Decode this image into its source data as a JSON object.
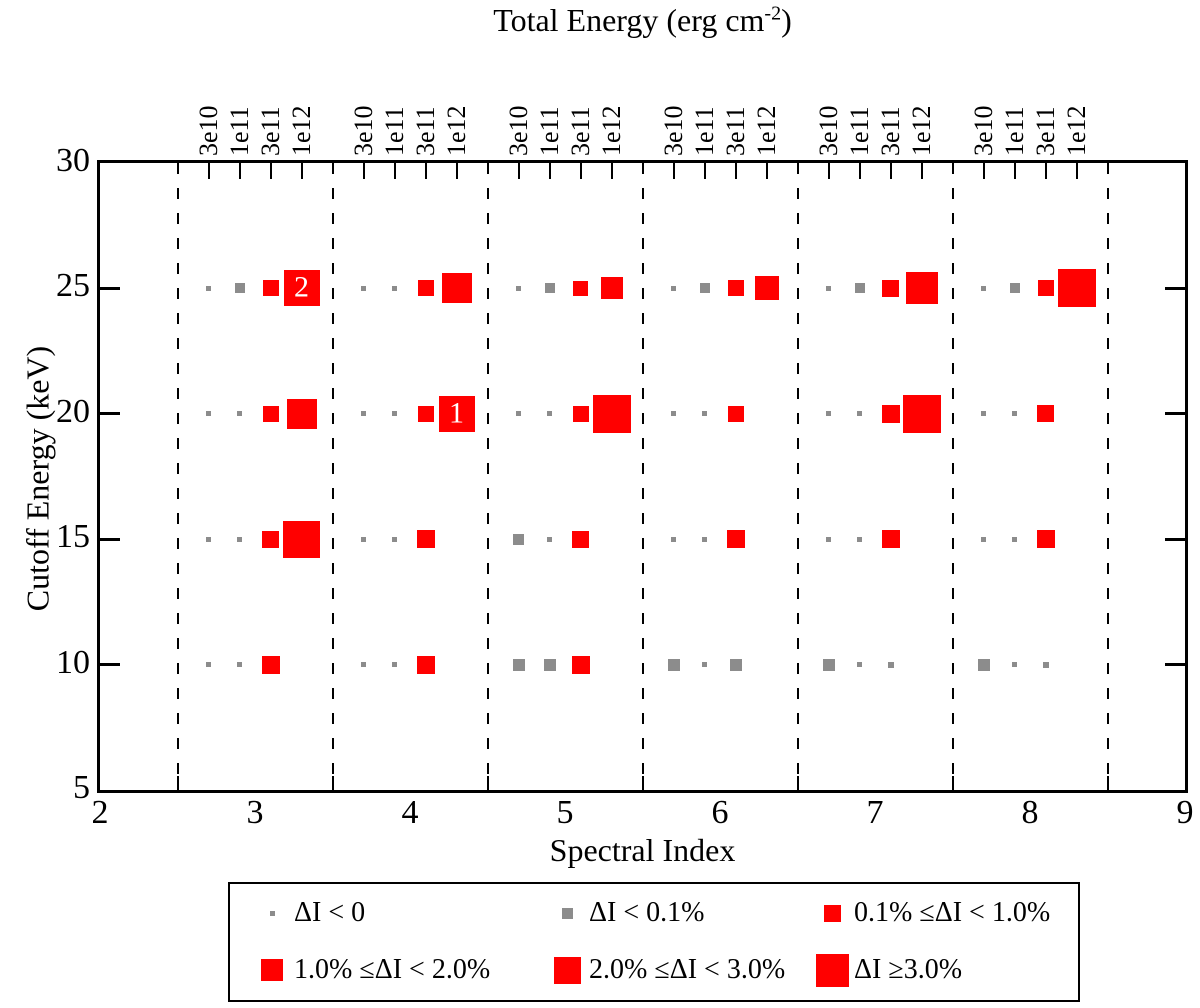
{
  "chart_data": {
    "type": "scatter",
    "title_top": {
      "prefix": "Total Energy (erg cm",
      "sup": "-2",
      "suffix": ")"
    },
    "xlabel": "Spectral Index",
    "ylabel": "Cutoff Energy (keV)",
    "xlim": [
      2,
      9
    ],
    "ylim": [
      5,
      30
    ],
    "x_ticks": [
      2,
      3,
      4,
      5,
      6,
      7,
      8,
      9
    ],
    "x_boundaries": [
      2.5,
      3.5,
      4.5,
      5.5,
      6.5,
      7.5,
      8.5
    ],
    "y_ticks": [
      5,
      10,
      15,
      20,
      25,
      30
    ],
    "y_inner_ticks": [
      10,
      15,
      20,
      25
    ],
    "energy_labels": [
      "3e10",
      "1e11",
      "3e11",
      "1e12"
    ],
    "energy_offsets": [
      -0.3,
      -0.1,
      0.1,
      0.3
    ],
    "colors": {
      "red": "#ff0000",
      "gray": "#8c8c8c"
    },
    "gray_max_size": 12,
    "points": {
      "3": {
        "25": [
          5,
          10,
          16,
          36
        ],
        "20": [
          5,
          5,
          16,
          30
        ],
        "15": [
          5,
          5,
          17,
          37
        ],
        "10": [
          5,
          5,
          18,
          null
        ]
      },
      "4": {
        "25": [
          5,
          5,
          16,
          30
        ],
        "20": [
          5,
          5,
          16,
          36
        ],
        "15": [
          5,
          5,
          18,
          null
        ],
        "10": [
          5,
          5,
          18,
          null
        ]
      },
      "5": {
        "25": [
          5,
          10,
          15,
          22
        ],
        "20": [
          5,
          5,
          16,
          38
        ],
        "15": [
          11,
          5,
          17,
          null
        ],
        "10": [
          12,
          12,
          18,
          null
        ]
      },
      "6": {
        "25": [
          5,
          10,
          16,
          24
        ],
        "20": [
          5,
          5,
          16,
          null
        ],
        "15": [
          5,
          5,
          18,
          null
        ],
        "10": [
          12,
          5,
          12,
          null
        ]
      },
      "7": {
        "25": [
          5,
          10,
          17,
          32
        ],
        "20": [
          5,
          5,
          18,
          38
        ],
        "15": [
          5,
          5,
          18,
          null
        ],
        "10": [
          12,
          5,
          6,
          null
        ]
      },
      "8": {
        "25": [
          5,
          10,
          16,
          38
        ],
        "20": [
          5,
          5,
          17,
          null
        ],
        "15": [
          5,
          5,
          18,
          null
        ],
        "10": [
          12,
          5,
          6,
          null
        ]
      }
    },
    "annotations": [
      {
        "x": 3.3,
        "y": 25,
        "text": "2"
      },
      {
        "x": 4.3,
        "y": 20,
        "text": "1"
      }
    ],
    "legend": {
      "entries": [
        {
          "row": 0,
          "col": 0,
          "label": "ΔI < 0",
          "size": 5,
          "color": "gray"
        },
        {
          "row": 0,
          "col": 1,
          "label": "ΔI < 0.1%",
          "size": 11,
          "color": "gray"
        },
        {
          "row": 0,
          "col": 2,
          "label": "0.1% ≤ΔI < 1.0%",
          "size": 17,
          "color": "red"
        },
        {
          "row": 1,
          "col": 0,
          "label": "1.0% ≤ΔI < 2.0%",
          "size": 22,
          "color": "red"
        },
        {
          "row": 1,
          "col": 1,
          "label": "2.0% ≤ΔI < 3.0%",
          "size": 27,
          "color": "red"
        },
        {
          "row": 1,
          "col": 2,
          "label": "ΔI ≥3.0%",
          "size": 33,
          "color": "red"
        }
      ]
    }
  }
}
